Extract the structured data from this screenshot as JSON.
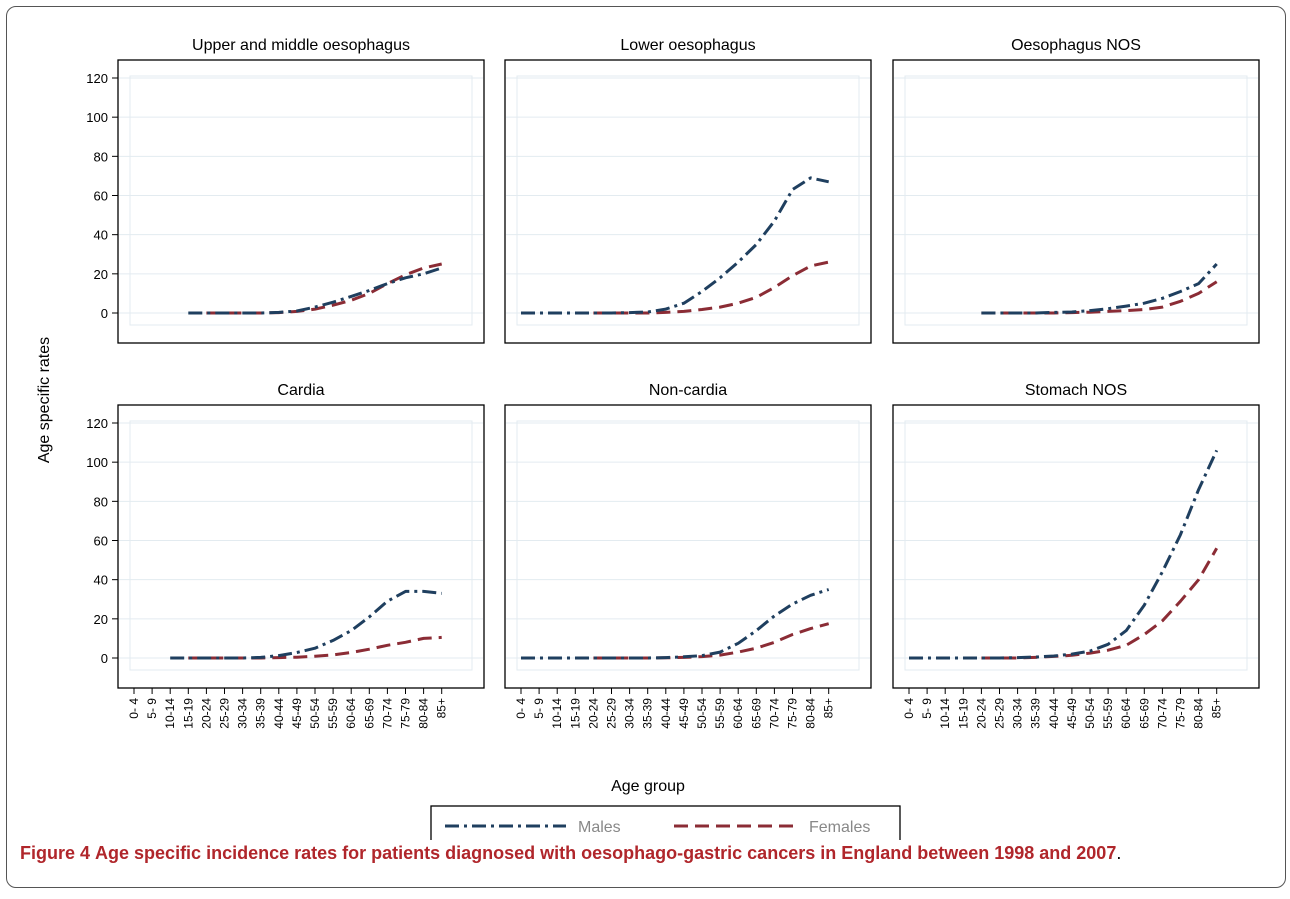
{
  "figure": {
    "label": "Figure 4",
    "caption": "Age specific incidence rates for patients diagnosed with oesophago-gastric cancers in England between 1998 and 2007"
  },
  "chart_data": {
    "type": "line",
    "ylabel": "Age specific rates",
    "xlabel": "Age group",
    "ylim": [
      0,
      120
    ],
    "yticks": [
      0,
      20,
      40,
      60,
      80,
      100,
      120
    ],
    "categories": [
      "0- 4",
      "5- 9",
      "10-14",
      "15-19",
      "20-24",
      "25-29",
      "30-34",
      "35-39",
      "40-44",
      "45-49",
      "50-54",
      "55-59",
      "60-64",
      "65-69",
      "70-74",
      "75-79",
      "80-84",
      "85+"
    ],
    "legend": {
      "position": "bottom",
      "entries": [
        "Males",
        "Females"
      ]
    },
    "colors": {
      "Males": "#1f3f5f",
      "Females": "#8b2c35"
    },
    "panels": [
      {
        "title": "Upper and middle oesophagus",
        "series": [
          {
            "name": "Males",
            "values": [
              null,
              null,
              null,
              0,
              0,
              0,
              0,
              0,
              0.3,
              1,
              3,
              5.5,
              8.5,
              11.5,
              15,
              18,
              20,
              23
            ]
          },
          {
            "name": "Females",
            "values": [
              null,
              null,
              null,
              null,
              0,
              0,
              0,
              0,
              0.2,
              0.8,
              2,
              4,
              6.5,
              10,
              15,
              19.5,
              23,
              25
            ]
          }
        ]
      },
      {
        "title": "Lower oesophagus",
        "series": [
          {
            "name": "Males",
            "values": [
              0,
              0,
              0,
              0,
              0,
              0,
              0.2,
              0.5,
              2,
              5,
              11,
              18,
              26,
              35,
              47,
              63,
              69,
              67
            ]
          },
          {
            "name": "Females",
            "values": [
              null,
              null,
              null,
              null,
              0,
              0,
              0,
              0,
              0.3,
              0.8,
              1.8,
              3,
              5,
              8,
              13,
              19,
              24,
              26
            ]
          }
        ]
      },
      {
        "title": "Oesophagus NOS",
        "series": [
          {
            "name": "Males",
            "values": [
              null,
              null,
              null,
              null,
              0,
              0,
              0,
              0,
              0.3,
              0.5,
              1.2,
              2.2,
              3.5,
              5,
              7.5,
              11,
              15,
              25
            ]
          },
          {
            "name": "Females",
            "values": [
              null,
              null,
              null,
              null,
              0,
              0,
              0,
              0,
              0,
              0.2,
              0.4,
              0.8,
              1.2,
              1.8,
              3,
              6,
              10,
              16
            ]
          }
        ]
      },
      {
        "title": "Cardia",
        "series": [
          {
            "name": "Males",
            "values": [
              null,
              null,
              0,
              0,
              0,
              0,
              0,
              0.3,
              1.2,
              2.8,
              5,
              9,
              14,
              21,
              29,
              34,
              34,
              33
            ]
          },
          {
            "name": "Females",
            "values": [
              null,
              null,
              null,
              0,
              0,
              0,
              0,
              0,
              0.2,
              0.4,
              0.9,
              1.6,
              2.8,
              4.5,
              6.5,
              8,
              10,
              10.5
            ]
          }
        ]
      },
      {
        "title": "Non-cardia",
        "series": [
          {
            "name": "Males",
            "values": [
              0,
              0,
              0,
              0,
              0,
              0,
              0,
              0,
              0.2,
              0.6,
              1.2,
              3,
              7.5,
              14,
              21.5,
              27.5,
              32,
              35
            ]
          },
          {
            "name": "Females",
            "values": [
              null,
              null,
              null,
              null,
              0,
              0,
              0,
              0,
              0.1,
              0.3,
              0.7,
              1.5,
              3,
              5,
              8,
              12,
              15,
              17.5
            ]
          }
        ]
      },
      {
        "title": "Stomach NOS",
        "series": [
          {
            "name": "Males",
            "values": [
              0,
              0,
              0,
              0,
              0,
              0,
              0.2,
              0.5,
              1,
              2,
              3.5,
              7,
              14,
              27,
              44,
              63,
              86,
              106
            ]
          },
          {
            "name": "Females",
            "values": [
              null,
              null,
              null,
              null,
              0,
              0,
              0,
              0.3,
              0.8,
              1.4,
              2.5,
              4,
              6.5,
              12,
              19,
              29,
              40,
              56
            ]
          }
        ]
      }
    ]
  }
}
